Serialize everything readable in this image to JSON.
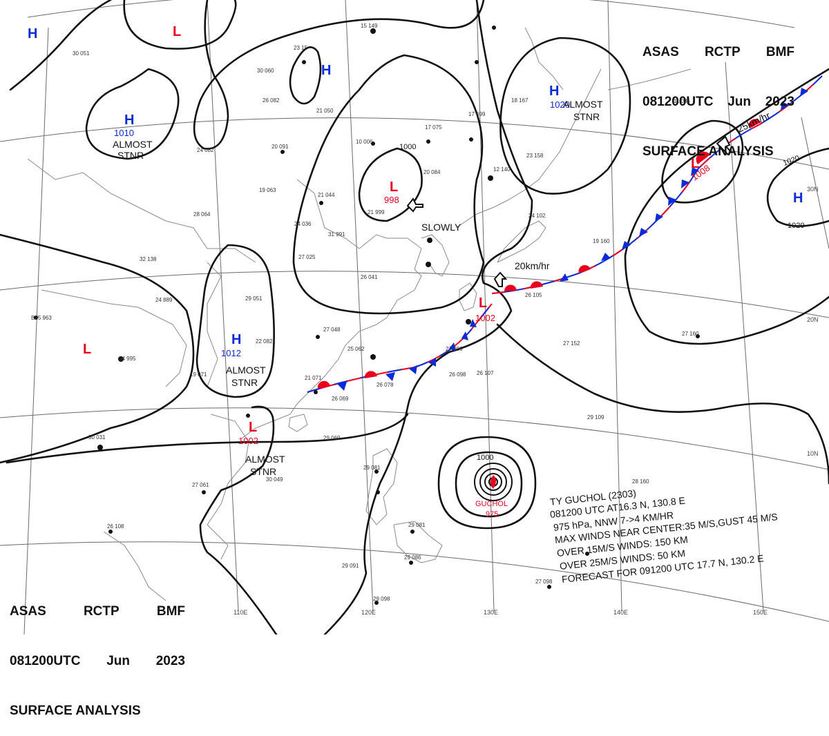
{
  "header_top": {
    "agency": "ASAS",
    "station": "RCTP",
    "office": "BMF",
    "datetime": "081200UTC",
    "month": "Jun",
    "year": "2023",
    "title": "SURFACE ANALYSIS"
  },
  "header_bottom": {
    "agency": "ASAS",
    "station": "RCTP",
    "office": "BMF",
    "datetime": "081200UTC",
    "month": "Jun",
    "year": "2023",
    "title": "SURFACE ANALYSIS"
  },
  "systems": {
    "h_1010": {
      "symbol": "H",
      "pressure": "1010",
      "note1": "ALMOST",
      "note2": "STNR"
    },
    "h_1012": {
      "symbol": "H",
      "pressure": "1012",
      "note1": "ALMOST",
      "note2": "STNR"
    },
    "h_1020": {
      "symbol": "H",
      "pressure": "1020",
      "note1": "ALMOST",
      "note2": "STNR"
    },
    "l_998": {
      "symbol": "L",
      "pressure": "998",
      "motion": "SLOWLY"
    },
    "l_1002_sw": {
      "symbol": "L",
      "pressure": "1002",
      "note1": "ALMOST",
      "note2": "STNR"
    },
    "l_1002_tw": {
      "symbol": "L",
      "pressure": "1002",
      "motion": "20km/hr"
    },
    "l_1008": {
      "symbol": "L",
      "pressure": "1008",
      "motion": "25km/hr"
    },
    "h_nw": {
      "symbol": "H"
    },
    "h_ne": {
      "symbol": "H"
    },
    "h_east": {
      "symbol": "H"
    },
    "l_north": {
      "symbol": "L"
    },
    "l_west": {
      "symbol": "L"
    }
  },
  "isobar_labels": {
    "i1000a": "1000",
    "i1000b": "1000",
    "i1020a": "1020",
    "i1020b": "1020"
  },
  "typhoon": {
    "name": "GUCHOL",
    "pressure": "975",
    "line1": "TY  GUCHOL  (2303)",
    "line2": "081200 UTC  AT16.3 N, 130.8 E",
    "line3": "975 hPa, NNW  7->4 KM/HR",
    "line4": "MAX WINDS NEAR CENTER:35 M/S,GUST 45 M/S",
    "line5": "OVER 15M/S WINDS: 150 KM",
    "line6": "OVER 25M/S WINDS: 50 KM",
    "line7": "FORECAST FOR 091200 UTC 17.7 N, 130.2 E"
  },
  "graticule": {
    "lon110": "110E",
    "lon120": "120E",
    "lon130": "130E",
    "lon140": "140E",
    "lon150": "150E",
    "lat10": "10N",
    "lat20": "20N",
    "lat30": "30N"
  },
  "station_plots": [
    "15 149",
    "23 15",
    "30 051",
    "30 060",
    "26 082",
    "21 050",
    "20 091",
    "24 082",
    "19 063",
    "28 064",
    "10 006",
    "17 075",
    "20 084",
    "21 044",
    "21 999",
    "24 036",
    "31 991",
    "27 025",
    "26 041",
    "17 099",
    "12 140",
    "18 167",
    "23 158",
    "11 086",
    "19 160",
    "24 102",
    "32 138",
    "24 889",
    "B35 963",
    "29 051",
    "34 995",
    "27 048",
    "25 062",
    "22 082",
    "19 071",
    "26 078",
    "27 086",
    "26 098",
    "26 107",
    "27 152",
    "27 160",
    "29 109",
    "30 031",
    "26 069",
    "29 069",
    "27 061",
    "30 049",
    "29 081",
    "26 108",
    "29 081",
    "29 086",
    "29 091",
    "29 098",
    "27 098",
    "28 160",
    "26 105",
    "21 071"
  ],
  "colors": {
    "low": "#e8001c",
    "high": "#0a2bd6",
    "isobar": "#111111",
    "coast": "#8a8a8a",
    "grid": "#555555",
    "warm_front": "#e8001c",
    "cold_front": "#0a2bd6"
  }
}
